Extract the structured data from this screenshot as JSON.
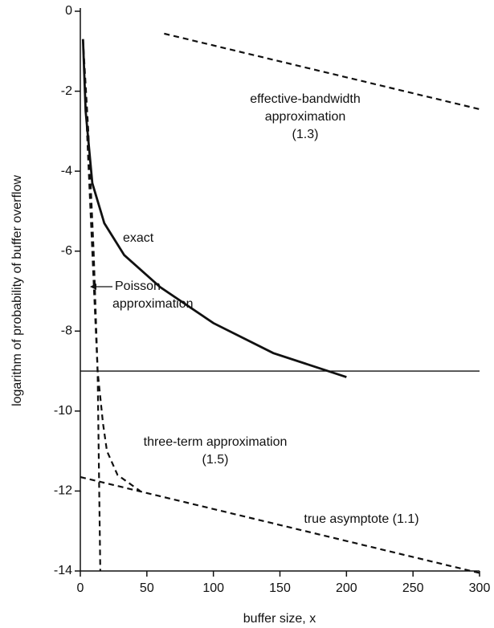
{
  "chart_data": {
    "type": "line",
    "x_label": "buffer size, x",
    "y_label": "logarithm of probability of buffer overflow",
    "xlim": [
      0,
      300
    ],
    "ylim": [
      -14,
      0
    ],
    "xticks": [
      0,
      50,
      100,
      150,
      200,
      250,
      300
    ],
    "yticks": [
      0,
      -2,
      -4,
      -6,
      -8,
      -10,
      -12,
      -14
    ],
    "reference_lines": [
      -9
    ],
    "color": "#111111",
    "series": [
      {
        "label": [
          "exact"
        ],
        "dashed": false,
        "x": [
          2,
          4,
          9,
          18,
          33,
          60,
          100,
          145,
          200
        ],
        "values": [
          -0.7,
          -2.5,
          -4.3,
          -5.3,
          -6.1,
          -6.9,
          -7.8,
          -8.55,
          -9.15
        ]
      },
      {
        "label": [
          "effective-bandwidth",
          "approximation",
          "(1.3)"
        ],
        "dashed": true,
        "x": [
          63,
          300
        ],
        "values": [
          -0.56,
          -2.45
        ]
      },
      {
        "label": [
          "Poisson",
          "approximation"
        ],
        "dashed": true,
        "x": [
          2,
          6,
          10,
          13,
          15
        ],
        "values": [
          -0.7,
          -3,
          -6,
          -9,
          -14
        ]
      },
      {
        "label": [
          "three-term approximation",
          "(1.5)"
        ],
        "dashed": true,
        "x": [
          2,
          5,
          9,
          13,
          17,
          20,
          28,
          45
        ],
        "values": [
          -0.7,
          -3,
          -6,
          -9,
          -10.3,
          -11,
          -11.6,
          -12
        ]
      },
      {
        "label": [
          "true asymptote (1.1)"
        ],
        "dashed": true,
        "x": [
          0,
          300
        ],
        "values": [
          -11.65,
          -14.05
        ]
      }
    ]
  }
}
